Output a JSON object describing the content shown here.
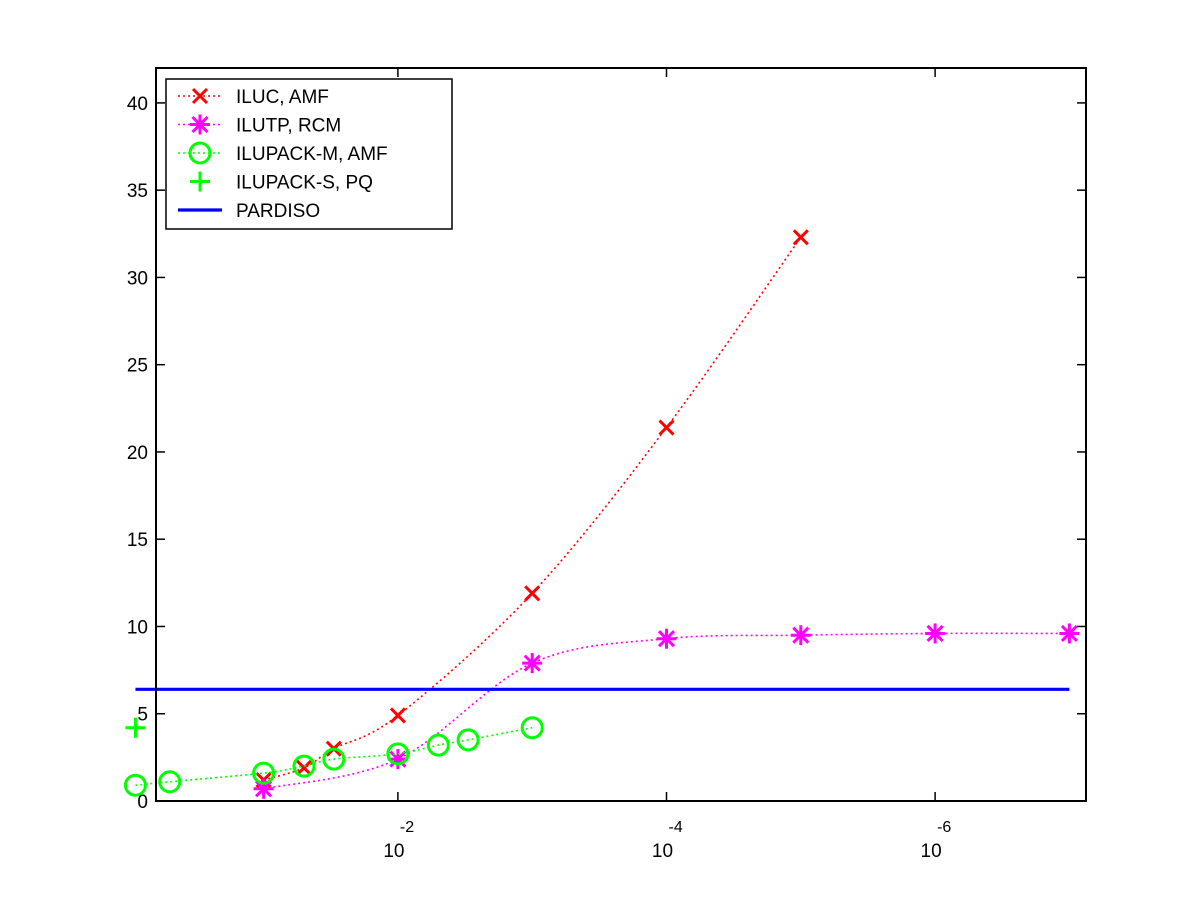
{
  "chart_data": {
    "type": "line",
    "x_scale": "log",
    "x_reversed": true,
    "xlim": [
      1,
      1e-07
    ],
    "ylim": [
      0,
      42
    ],
    "x_ticks": [
      {
        "value": 0.01,
        "base": "10",
        "exp": "-2"
      },
      {
        "value": 0.0001,
        "base": "10",
        "exp": "-4"
      },
      {
        "value": 1e-06,
        "base": "10",
        "exp": "-6"
      }
    ],
    "y_ticks": [
      0,
      5,
      10,
      15,
      20,
      25,
      30,
      35,
      40
    ],
    "legend_position": "top-left",
    "series": [
      {
        "name": "ILUC, AMF",
        "color": "#ff0000",
        "marker": "x",
        "line": "dotted",
        "x": [
          0.1,
          0.05,
          0.03,
          0.01,
          0.001,
          0.0001,
          1e-05
        ],
        "y": [
          1.2,
          1.9,
          3.0,
          4.9,
          11.9,
          21.4,
          32.3
        ]
      },
      {
        "name": "ILUTP, RCM",
        "color": "#ff00ff",
        "marker": "star",
        "line": "dotted",
        "x": [
          0.1,
          0.01,
          0.001,
          0.0001,
          1e-05,
          1e-06,
          1e-07
        ],
        "y": [
          0.7,
          2.4,
          7.9,
          9.3,
          9.5,
          9.6,
          9.6
        ]
      },
      {
        "name": "ILUPACK-M, AMF",
        "color": "#00ff00",
        "marker": "circle",
        "line": "dotted",
        "x": [
          0.9,
          0.5,
          0.1,
          0.05,
          0.03,
          0.01,
          0.005,
          0.003,
          0.001
        ],
        "y": [
          0.9,
          1.1,
          1.6,
          2.0,
          2.4,
          2.7,
          3.2,
          3.5,
          4.2
        ]
      },
      {
        "name": "ILUPACK-S, PQ",
        "color": "#00ff00",
        "marker": "plus",
        "line": "none",
        "x": [
          0.9
        ],
        "y": [
          4.2
        ]
      },
      {
        "name": "PARDISO",
        "color": "#0000ff",
        "marker": "none",
        "line": "solid",
        "x": [
          0.9,
          1e-07
        ],
        "y": [
          6.4,
          6.4
        ]
      }
    ]
  }
}
